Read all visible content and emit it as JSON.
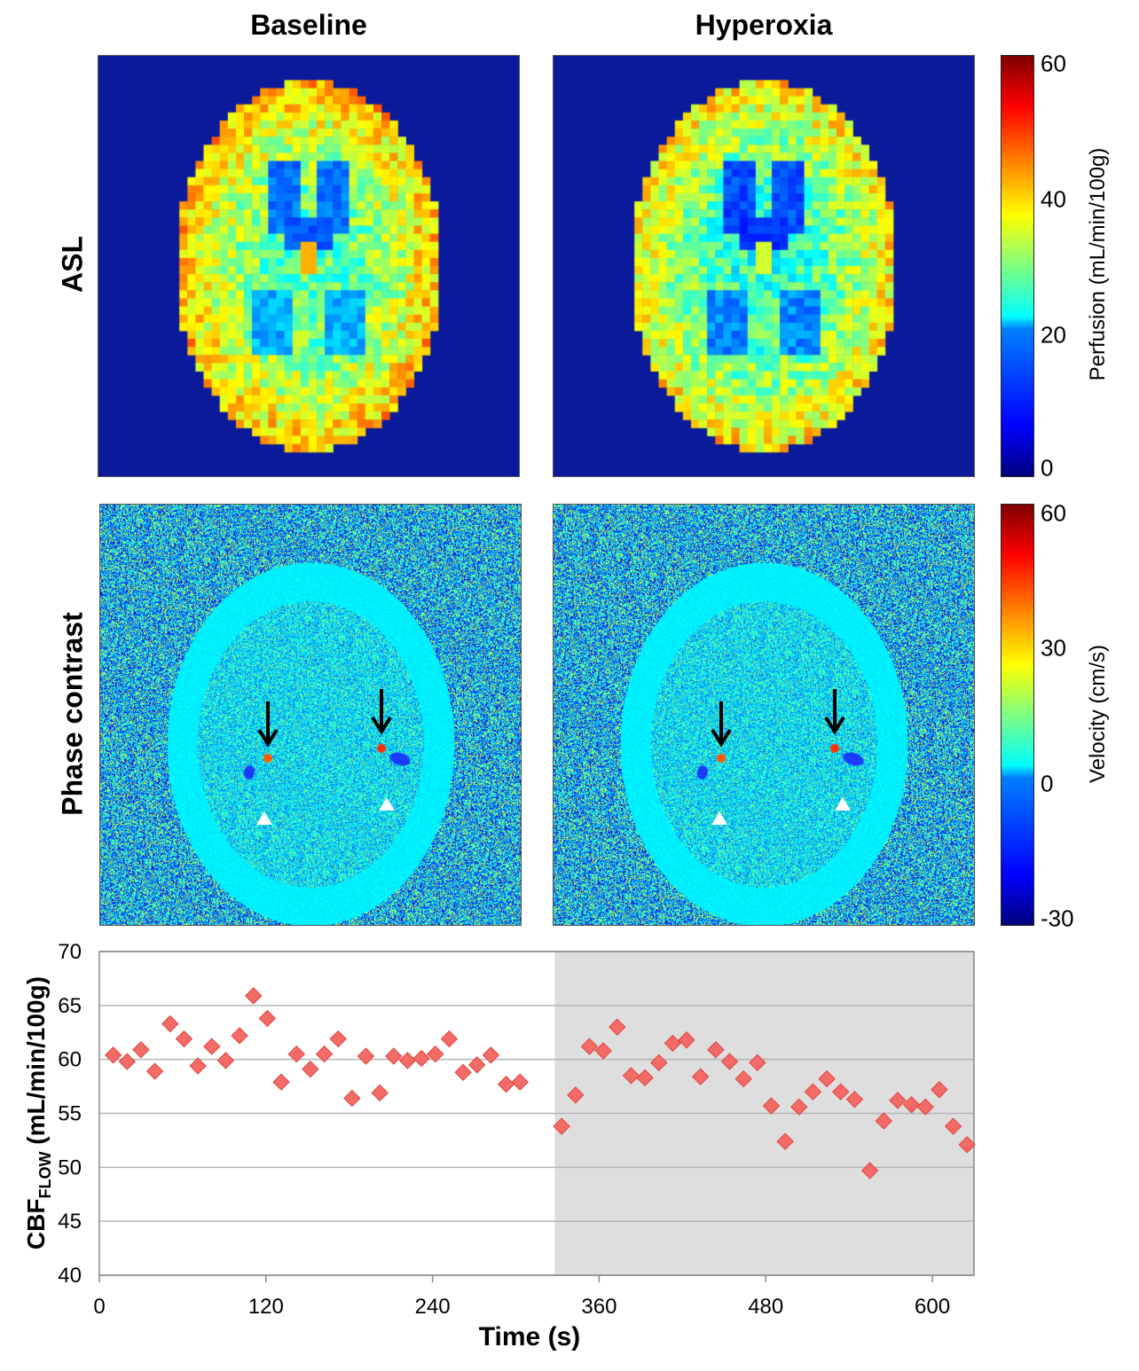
{
  "columns": [
    "Baseline",
    "Hyperoxia"
  ],
  "rows": [
    "ASL",
    "Phase contrast"
  ],
  "colorbars": [
    {
      "label": "Perfusion (mL/min/100g)",
      "ticks": [
        "60",
        "40",
        "20",
        "0"
      ]
    },
    {
      "label": "Velocity (cm/s)",
      "ticks": [
        "60",
        "30",
        "0",
        "-30"
      ]
    }
  ],
  "colors": {
    "marker": "#f26b66",
    "marker_edge": "#e0453f",
    "hyperoxia_shade": "#dedede",
    "background": "#0a1a9a"
  },
  "chart_data": {
    "type": "scatter",
    "title": "",
    "xlabel": "Time (s)",
    "ylabel_main": "CBF",
    "ylabel_sub": "FLOW",
    "ylabel_units": " (mL/min/100g)",
    "xlim": [
      0,
      630
    ],
    "ylim": [
      40,
      70
    ],
    "xticks": [
      0,
      120,
      240,
      360,
      480,
      600
    ],
    "yticks": [
      40,
      45,
      50,
      55,
      60,
      65,
      70
    ],
    "shaded_region": {
      "label": "Hyperoxia",
      "x_start": 328,
      "x_end": 630
    },
    "series": [
      {
        "name": "CBF flow",
        "x": [
          10,
          20,
          30,
          40,
          51,
          61,
          71,
          81,
          91,
          101,
          111,
          121,
          131,
          142,
          152,
          162,
          172,
          182,
          192,
          202,
          212,
          222,
          232,
          242,
          252,
          262,
          272,
          282,
          293,
          303,
          333,
          343,
          353,
          363,
          373,
          383,
          393,
          403,
          413,
          423,
          433,
          444,
          454,
          464,
          474,
          484,
          494,
          504,
          514,
          524,
          534,
          544,
          555,
          565,
          575,
          585,
          595,
          605,
          615,
          625
        ],
        "y": [
          60.4,
          59.8,
          60.9,
          58.9,
          63.3,
          61.9,
          59.4,
          61.2,
          59.9,
          62.2,
          65.9,
          63.8,
          57.9,
          60.5,
          59.1,
          60.5,
          61.9,
          56.4,
          60.3,
          56.9,
          60.3,
          59.9,
          60.1,
          60.5,
          61.9,
          58.8,
          59.5,
          60.4,
          57.7,
          57.9,
          53.8,
          56.7,
          61.2,
          60.8,
          63.0,
          58.5,
          58.3,
          59.7,
          61.5,
          61.8,
          58.4,
          60.9,
          59.8,
          58.2,
          59.7,
          55.7,
          52.4,
          55.6,
          57.0,
          58.2,
          57.0,
          56.3,
          49.7,
          54.3,
          56.2,
          55.8,
          55.6,
          57.2,
          53.8,
          52.1
        ]
      }
    ]
  }
}
